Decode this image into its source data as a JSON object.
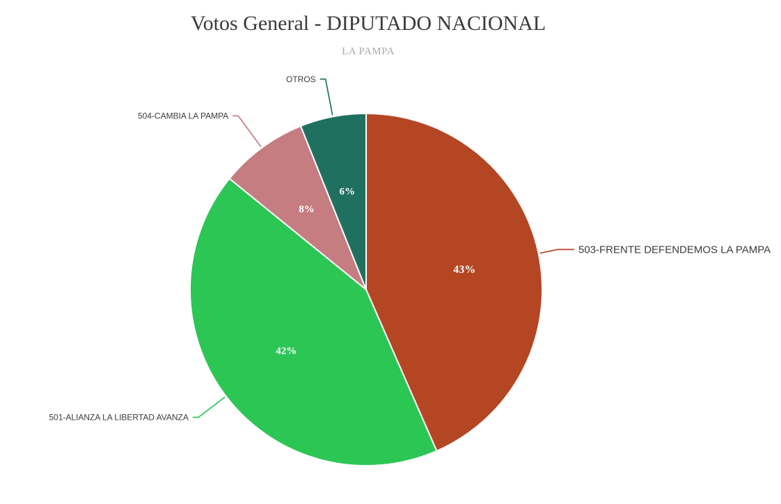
{
  "header": {
    "title": "Votos General - DIPUTADO NACIONAL",
    "subtitle": "LA PAMPA"
  },
  "chart_data": {
    "type": "pie",
    "title": "Votos General - DIPUTADO NACIONAL",
    "subtitle": "LA PAMPA",
    "slices": [
      {
        "label": "503-FRENTE DEFENDEMOS LA PAMPA",
        "percent": 43,
        "display": "43%",
        "color": "#b54624"
      },
      {
        "label": "501-ALIANZA LA LIBERTAD AVANZA",
        "percent": 42,
        "display": "42%",
        "color": "#2cc655"
      },
      {
        "label": "504-CAMBIA LA PAMPA",
        "percent": 8,
        "display": "8%",
        "color": "#c57d82"
      },
      {
        "label": "OTROS",
        "percent": 6,
        "display": "6%",
        "color": "#20705f"
      }
    ],
    "start_angle": "top",
    "direction": "clockwise",
    "legend_position": "none (callout labels)",
    "slice_border_color": "#ffffff",
    "percent_label_color": "#ffffff",
    "outside_label_color": "#3b3b3b"
  }
}
